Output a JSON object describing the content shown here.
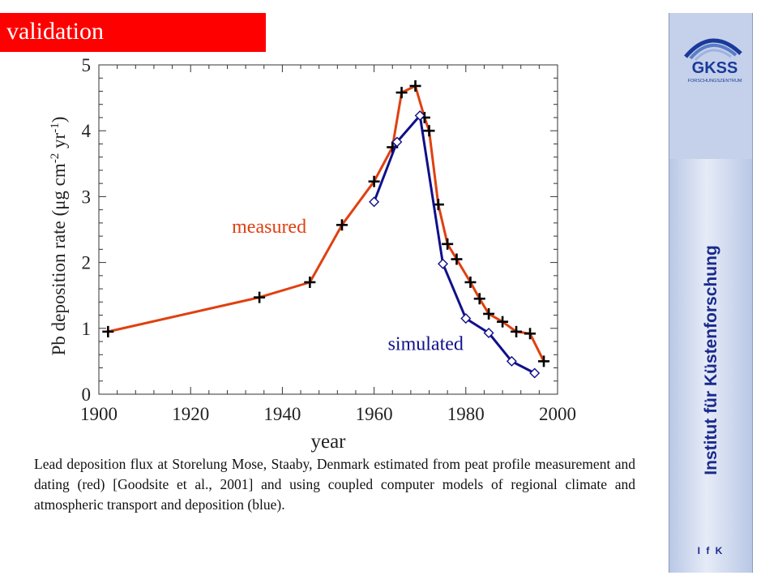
{
  "slide": {
    "title": "validation",
    "caption": "Lead deposition flux at Storelung Mose, Staaby, Denmark estimated from peat profile measurement and dating (red) [Goodsite et al., 2001] and using coupled computer models of regional climate and atmospheric transport and deposition (blue).",
    "sidebar_text": "Institut für Küstenforschung",
    "sidebar_footer": "I f K",
    "logo_text": "GKSS",
    "logo_subtext": "FORSCHUNGSZENTRUM"
  },
  "colors": {
    "banner": "#ff0000",
    "measured": "#e04010",
    "simulated": "#10108a",
    "sidebar_text": "#1a2a8c"
  },
  "chart_data": {
    "type": "line",
    "xlabel": "year",
    "ylabel_parts": [
      "Pb deposition rate (",
      "μ",
      "g cm",
      "-2",
      " yr",
      "-1",
      ")"
    ],
    "xlim": [
      1900,
      2000
    ],
    "ylim": [
      0,
      5
    ],
    "x_ticks": [
      1900,
      1920,
      1940,
      1960,
      1980,
      2000
    ],
    "y_ticks": [
      0,
      1,
      2,
      3,
      4,
      5
    ],
    "grid": false,
    "series": [
      {
        "name": "measured",
        "color": "#e04010",
        "marker": "plus",
        "x": [
          1902,
          1935,
          1946,
          1953,
          1960,
          1964,
          1966,
          1969,
          1971,
          1972,
          1974,
          1976,
          1978,
          1981,
          1983,
          1985,
          1988,
          1991,
          1994,
          1997
        ],
        "y": [
          0.95,
          1.47,
          1.7,
          2.57,
          3.23,
          3.75,
          4.58,
          4.68,
          4.2,
          4.0,
          2.88,
          2.28,
          2.05,
          1.7,
          1.45,
          1.22,
          1.1,
          0.95,
          0.92,
          0.5
        ]
      },
      {
        "name": "simulated",
        "color": "#10108a",
        "marker": "diamond",
        "x": [
          1960,
          1965,
          1970,
          1975,
          1980,
          1985,
          1990,
          1995
        ],
        "y": [
          2.92,
          3.83,
          4.23,
          1.98,
          1.15,
          0.93,
          0.5,
          0.32
        ]
      }
    ]
  }
}
